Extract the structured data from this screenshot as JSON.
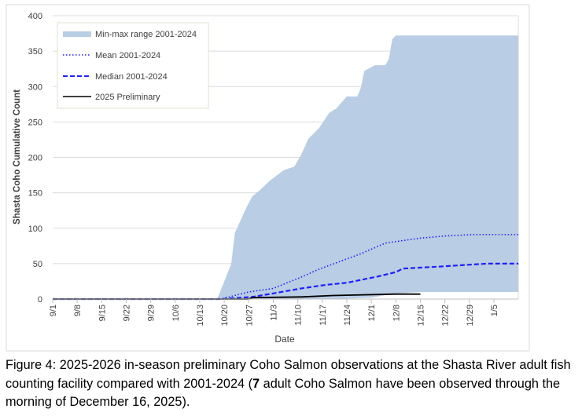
{
  "chart_data": {
    "type": "area",
    "xlabel": "Date",
    "ylabel": "Shasta Coho Cumulative Count",
    "ylim": [
      0,
      400
    ],
    "yticks": [
      0,
      50,
      100,
      150,
      200,
      250,
      300,
      350,
      400
    ],
    "xlim": [
      "2025-09-01",
      "2026-01-12"
    ],
    "xtick_labels": [
      "9/1",
      "9/8",
      "9/15",
      "9/22",
      "9/29",
      "10/6",
      "10/13",
      "10/20",
      "10/27",
      "11/3",
      "11/10",
      "11/17",
      "11/24",
      "12/1",
      "12/8",
      "12/15",
      "12/22",
      "12/29",
      "1/5"
    ],
    "grid": true,
    "legend_position": "top-left",
    "legend": [
      "Min-max range 2001-2024",
      "Mean 2001-2024",
      "Median 2001-2024",
      "2025 Preliminary"
    ],
    "colors": {
      "range": "#b9cde4",
      "mean": "#1f1fff",
      "median": "#1f1fff",
      "prelim": "#000000"
    },
    "series": [
      {
        "name": "Min-max range 2001-2024",
        "kind": "band",
        "max": [
          [
            "2025-09-01",
            0
          ],
          [
            "2025-10-18",
            0
          ],
          [
            "2025-10-20",
            25
          ],
          [
            "2025-10-22",
            50
          ],
          [
            "2025-10-23",
            93
          ],
          [
            "2025-10-26",
            126
          ],
          [
            "2025-10-28",
            145
          ],
          [
            "2025-10-30",
            153
          ],
          [
            "2025-11-02",
            167
          ],
          [
            "2025-11-06",
            182
          ],
          [
            "2025-11-09",
            187
          ],
          [
            "2025-11-11",
            204
          ],
          [
            "2025-11-13",
            226
          ],
          [
            "2025-11-16",
            241
          ],
          [
            "2025-11-19",
            263
          ],
          [
            "2025-11-21",
            269
          ],
          [
            "2025-11-24",
            286
          ],
          [
            "2025-11-27",
            286
          ],
          [
            "2025-11-28",
            298
          ],
          [
            "2025-11-29",
            322
          ],
          [
            "2025-12-02",
            330
          ],
          [
            "2025-12-05",
            330
          ],
          [
            "2025-12-06",
            339
          ],
          [
            "2025-12-07",
            367
          ],
          [
            "2025-12-08",
            372
          ],
          [
            "2026-01-12",
            372
          ]
        ],
        "min": [
          [
            "2025-09-01",
            0
          ],
          [
            "2025-11-20",
            0
          ],
          [
            "2025-12-01",
            2
          ],
          [
            "2025-12-08",
            8
          ],
          [
            "2025-12-15",
            10
          ],
          [
            "2026-01-12",
            10
          ]
        ]
      },
      {
        "name": "Mean 2001-2024",
        "kind": "dotted",
        "points": [
          [
            "2025-09-01",
            0
          ],
          [
            "2025-10-19",
            0
          ],
          [
            "2025-10-27",
            10
          ],
          [
            "2025-11-03",
            15
          ],
          [
            "2025-11-11",
            31
          ],
          [
            "2025-11-16",
            42
          ],
          [
            "2025-11-22",
            53
          ],
          [
            "2025-11-28",
            64
          ],
          [
            "2025-12-05",
            79
          ],
          [
            "2025-12-15",
            86
          ],
          [
            "2025-12-22",
            89
          ],
          [
            "2025-12-30",
            91
          ],
          [
            "2026-01-12",
            91
          ]
        ]
      },
      {
        "name": "Median 2001-2024",
        "kind": "dashed",
        "points": [
          [
            "2025-09-01",
            0
          ],
          [
            "2025-10-19",
            0
          ],
          [
            "2025-10-28",
            3
          ],
          [
            "2025-11-03",
            8
          ],
          [
            "2025-11-11",
            15
          ],
          [
            "2025-11-18",
            20
          ],
          [
            "2025-11-24",
            23
          ],
          [
            "2025-12-03",
            32
          ],
          [
            "2025-12-08",
            38
          ],
          [
            "2025-12-10",
            43
          ],
          [
            "2025-12-21",
            46
          ],
          [
            "2026-01-03",
            50
          ],
          [
            "2026-01-12",
            50
          ]
        ]
      },
      {
        "name": "2025 Preliminary",
        "kind": "solid",
        "points": [
          [
            "2025-09-01",
            0
          ],
          [
            "2025-10-27",
            0
          ],
          [
            "2025-10-28",
            2
          ],
          [
            "2025-11-11",
            3
          ],
          [
            "2025-11-20",
            5
          ],
          [
            "2025-12-08",
            7
          ],
          [
            "2025-12-15",
            7
          ]
        ]
      }
    ]
  },
  "caption": {
    "prefix": "Figure 4: 2025-2026 in-season preliminary Coho Salmon observations at the Shasta River adult fish counting facility compared with 2001-2024 (",
    "count": "7",
    "suffix": " adult Coho Salmon have been observed through the morning of December 16, 2025)."
  }
}
